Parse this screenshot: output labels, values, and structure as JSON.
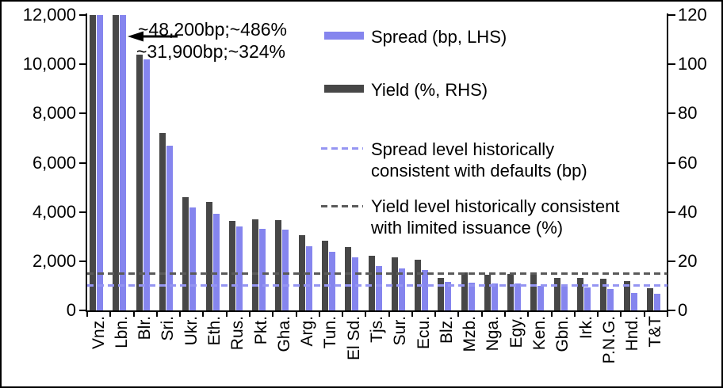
{
  "chart_data": {
    "type": "bar",
    "dual_axis": true,
    "grid": false,
    "legend_position": "top-right-inside",
    "categories": [
      "Vnz.",
      "Lbn.",
      "Blr.",
      "Sri.",
      "Ukr.",
      "Eth.",
      "Rus.",
      "Pkt.",
      "Gha.",
      "Arg.",
      "Tun.",
      "El Sd.",
      "Tjs.",
      "Sur.",
      "Ecu.",
      "Blz.",
      "Mzb.",
      "Nga.",
      "Egy.",
      "Ken.",
      "Gbn.",
      "Irk.",
      "P.N.G.",
      "Hnd.",
      "T&T"
    ],
    "series": [
      {
        "name": "Spread (bp, LHS)",
        "axis": "left",
        "color": "#8585ee",
        "values": [
          48200,
          31900,
          10200,
          6700,
          4190,
          3910,
          3410,
          3300,
          3280,
          2620,
          2390,
          2150,
          1790,
          1715,
          1650,
          1150,
          1110,
          1090,
          1080,
          1000,
          960,
          920,
          860,
          700,
          680
        ]
      },
      {
        "name": "Yield (%, RHS)",
        "axis": "right",
        "color": "#474747",
        "values": [
          486,
          324,
          104,
          72,
          46,
          44,
          36.5,
          37,
          36.8,
          30.6,
          28.4,
          25.7,
          22.2,
          21.6,
          20.7,
          13.1,
          15.4,
          14.6,
          14.9,
          14.5,
          13.3,
          13.2,
          12.8,
          11.9,
          8.9
        ]
      }
    ],
    "left_axis": {
      "min": 0,
      "max": 12000,
      "tick_values": [
        0,
        2000,
        4000,
        6000,
        8000,
        10000,
        12000
      ],
      "tick_labels": [
        "0",
        "2,000",
        "4,000",
        "6,000",
        "8,000",
        "10,000",
        "12,000"
      ]
    },
    "right_axis": {
      "min": 0,
      "max": 120,
      "tick_values": [
        0,
        20,
        40,
        60,
        80,
        100,
        120
      ],
      "tick_labels": [
        "0",
        "20",
        "40",
        "60",
        "80",
        "100",
        "120"
      ]
    },
    "reference_lines": [
      {
        "name": "Spread level historically consistent with defaults (bp)",
        "axis": "left",
        "value": 1000,
        "style": "dashed",
        "color": "#9595f2"
      },
      {
        "name": "Yield level historically consistent with limited issuance (%)",
        "axis": "right",
        "value": 15,
        "style": "dashed",
        "color": "#5a5a5a"
      }
    ],
    "annotations": [
      {
        "text": "~48,200bp;~486%",
        "refers_to": "Vnz."
      },
      {
        "text": "~31,900bp;~324%",
        "refers_to": "Lbn."
      }
    ],
    "legend": [
      {
        "label": "Spread (bp, LHS)",
        "swatch": "solid-blue"
      },
      {
        "label": "Yield (%, RHS)",
        "swatch": "solid-gray"
      },
      {
        "label_lines": [
          "Spread level historically",
          "consistent with defaults (bp)"
        ],
        "swatch": "dashed-blue"
      },
      {
        "label_lines": [
          "Yield level historically consistent",
          "with limited issuance (%)"
        ],
        "swatch": "dashed-gray"
      }
    ],
    "colors": {
      "spread_bar": "#8585ee",
      "yield_bar": "#474747",
      "spread_dash": "#9595f2",
      "yield_dash": "#5a5a5a"
    }
  }
}
